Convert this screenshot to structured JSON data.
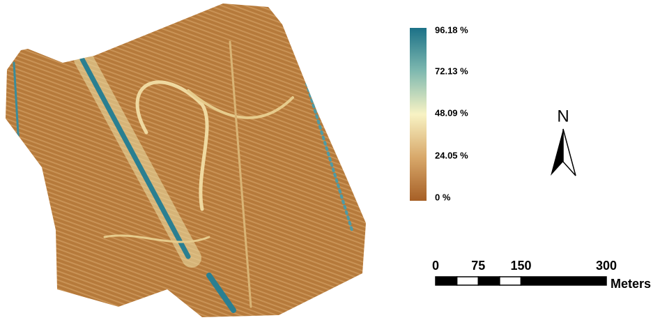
{
  "legend": {
    "labels": [
      "96.18 %",
      "72.13 %",
      "48.09 %",
      "24.05 %",
      "0 %"
    ]
  },
  "north_arrow": {
    "label": "N"
  },
  "scale_bar": {
    "ticks": [
      0,
      75,
      150,
      300
    ],
    "unit": "Meters"
  }
}
